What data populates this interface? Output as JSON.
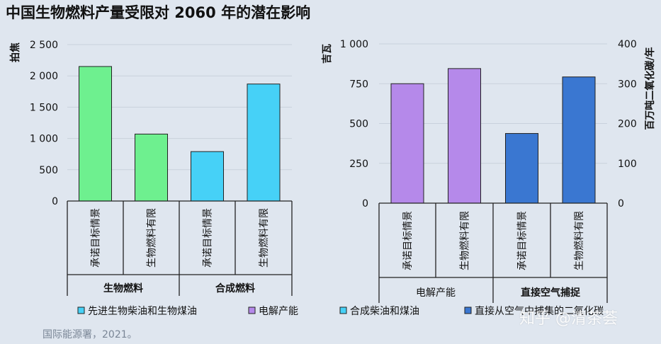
{
  "title": "中国生物燃料产量受限对 2060 年的潜在影响",
  "source": "国际能源署，2021。",
  "watermark": "知乎 @清茶荟",
  "colors": {
    "green": "#6ef08f",
    "cyan": "#46d1f7",
    "purple": "#b589ea",
    "blue": "#3a77d1"
  },
  "legend": [
    {
      "label": "先进生物柴油和生物煤油",
      "color": "#46d1f7"
    },
    {
      "label": "电解产能",
      "color": "#b589ea"
    },
    {
      "label": "合成柴油和煤油",
      "color": "#46d1f7"
    },
    {
      "label": "直接从空气中捕集的二氧化碳",
      "color": "#3a77d1"
    }
  ],
  "chart_data": [
    {
      "type": "bar",
      "ylabel": "拍焦",
      "ylim": [
        0,
        2500
      ],
      "yticks": [
        0,
        500,
        1000,
        1500,
        2000,
        2500
      ],
      "ytick_labels": [
        "0",
        "500",
        "1 000",
        "1 500",
        "2 000",
        "2 500"
      ],
      "categories": [
        "承诺目标情景",
        "生物燃料有限",
        "承诺目标情景",
        "生物燃料有限"
      ],
      "values": [
        2150,
        1070,
        790,
        1870
      ],
      "bar_colors": [
        "#6ef08f",
        "#6ef08f",
        "#46d1f7",
        "#46d1f7"
      ],
      "groups": [
        "生物燃料",
        "合成燃料"
      ]
    },
    {
      "type": "bar",
      "ylabel": "吉瓦",
      "ylabel_right": "百万吨二氧化碳/年",
      "ylim": [
        0,
        1000
      ],
      "ylim_right": [
        0,
        400
      ],
      "yticks": [
        0,
        250,
        500,
        750,
        1000
      ],
      "ytick_labels": [
        "0",
        "250",
        "500",
        "750",
        "1 000"
      ],
      "yticks_right": [
        0,
        100,
        200,
        300,
        400
      ],
      "categories": [
        "承诺目标情景",
        "生物燃料有限",
        "承诺目标情景",
        "生物燃料有限"
      ],
      "values": [
        750,
        845,
        175,
        317
      ],
      "axis_for_bar": [
        "left",
        "left",
        "right",
        "right"
      ],
      "bar_colors": [
        "#b589ea",
        "#b589ea",
        "#3a77d1",
        "#3a77d1"
      ],
      "groups": [
        "电解产能",
        "直接空气捕捉"
      ]
    }
  ]
}
